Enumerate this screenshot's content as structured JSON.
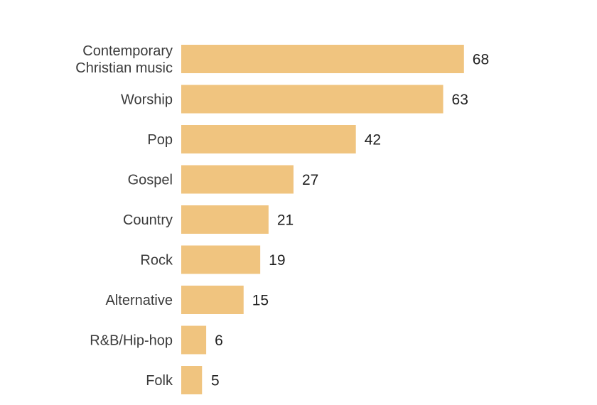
{
  "chart_data": {
    "type": "bar",
    "orientation": "horizontal",
    "title": "",
    "xlabel": "",
    "ylabel": "",
    "categories": [
      [
        "Contemporary",
        "Christian music"
      ],
      [
        "Worship"
      ],
      [
        "Pop"
      ],
      [
        "Gospel"
      ],
      [
        "Country"
      ],
      [
        "Rock"
      ],
      [
        "Alternative"
      ],
      [
        "R&B/Hip-hop"
      ],
      [
        "Folk"
      ]
    ],
    "values": [
      68,
      63,
      42,
      27,
      21,
      19,
      15,
      6,
      5
    ],
    "value_labels": [
      "68",
      "63",
      "42",
      "27",
      "21",
      "19",
      "15",
      "6",
      "5"
    ],
    "xlim": [
      0,
      100
    ],
    "grid": false,
    "legend": "none",
    "bar_color": "#f0c47f"
  }
}
